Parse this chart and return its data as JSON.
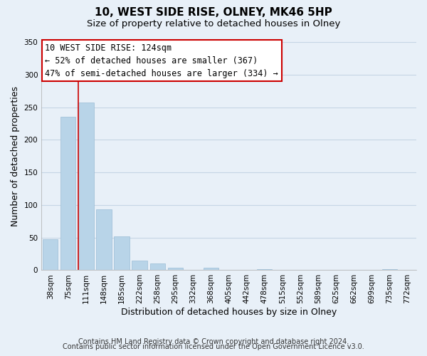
{
  "title": "10, WEST SIDE RISE, OLNEY, MK46 5HP",
  "subtitle": "Size of property relative to detached houses in Olney",
  "xlabel": "Distribution of detached houses by size in Olney",
  "ylabel": "Number of detached properties",
  "bar_color": "#b8d4e8",
  "bar_edge_color": "#9bbdd6",
  "categories": [
    "38sqm",
    "75sqm",
    "111sqm",
    "148sqm",
    "185sqm",
    "222sqm",
    "258sqm",
    "295sqm",
    "332sqm",
    "368sqm",
    "405sqm",
    "442sqm",
    "478sqm",
    "515sqm",
    "552sqm",
    "589sqm",
    "625sqm",
    "662sqm",
    "699sqm",
    "735sqm",
    "772sqm"
  ],
  "values": [
    47,
    235,
    257,
    93,
    52,
    15,
    10,
    4,
    0,
    4,
    0,
    0,
    2,
    0,
    0,
    0,
    0,
    0,
    0,
    2,
    0
  ],
  "ylim": [
    0,
    350
  ],
  "yticks": [
    0,
    50,
    100,
    150,
    200,
    250,
    300,
    350
  ],
  "property_line_color": "#cc0000",
  "property_line_bar_index": 2,
  "annotation_line1": "10 WEST SIDE RISE: 124sqm",
  "annotation_line2": "← 52% of detached houses are smaller (367)",
  "annotation_line3": "47% of semi-detached houses are larger (334) →",
  "footer_line1": "Contains HM Land Registry data © Crown copyright and database right 2024.",
  "footer_line2": "Contains public sector information licensed under the Open Government Licence v3.0.",
  "background_color": "#e8f0f8",
  "plot_background_color": "#e8f0f8",
  "grid_color": "#c5d5e5",
  "title_fontsize": 11,
  "subtitle_fontsize": 9.5,
  "axis_label_fontsize": 9,
  "tick_fontsize": 7.5,
  "annotation_fontsize": 8.5,
  "footer_fontsize": 7
}
